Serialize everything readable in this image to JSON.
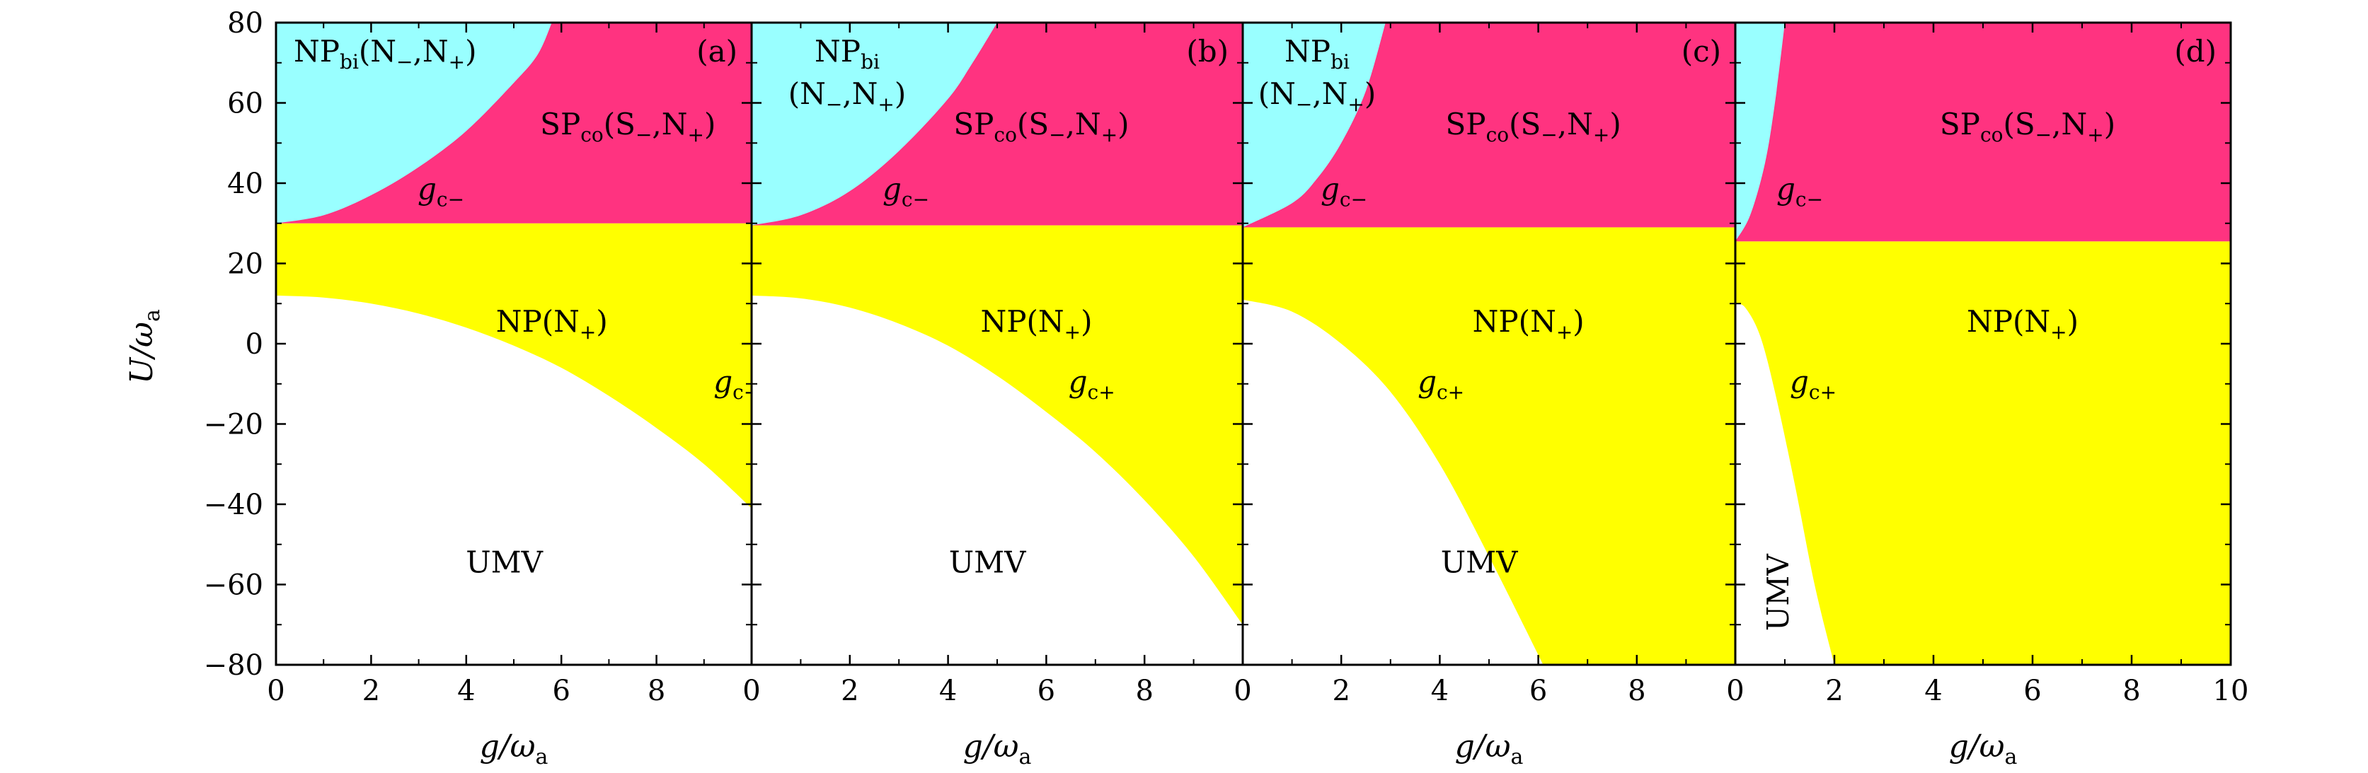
{
  "chart_data": {
    "type": "area",
    "description_axes": {
      "xlabel": "g/ω",
      "xlabel_sub": "a",
      "ylabel": "U/ω",
      "ylabel_sub": "a",
      "ylim": [
        -80,
        80
      ],
      "yticks": [
        -80,
        -60,
        -40,
        -20,
        0,
        20,
        40,
        60,
        80
      ]
    },
    "colors": {
      "NPbi": "#99ffff",
      "SPco": "#ff3380",
      "NPplus": "#ffff00",
      "UMV": "#ffffff",
      "frame": "#000000"
    },
    "region_text": {
      "UMV": "UMV",
      "NPplus_main": "NP(N",
      "NPplus_sub": "+",
      "NPplus_close": ")",
      "SPco_main": "SP",
      "SPco_sub": "co",
      "SPco_args": "(S",
      "SPco_sub2": "−",
      "SPco_args2": ",N",
      "SPco_sub3": "+",
      "SPco_close": ")",
      "NPbi_main": "NP",
      "NPbi_sub": "bi",
      "NPbi_args": "(N",
      "NPbi_sub2": "−",
      "NPbi_args2": ",N",
      "NPbi_sub3": "+",
      "NPbi_close": ")",
      "gc_minus": "g",
      "gc_minus_sub": "c−",
      "gc_plus": "g",
      "gc_plus_sub": "c+"
    },
    "panels": [
      {
        "label": "(a)",
        "xlim": [
          0,
          10
        ],
        "xticks": [
          0,
          2,
          4,
          6,
          8
        ],
        "xtick_labels": [
          "0",
          "2",
          "4",
          "6",
          "8"
        ],
        "gc_plus_boundary": {
          "x": [
            0,
            1,
            2,
            3,
            4,
            5,
            6,
            7,
            8,
            9,
            10
          ],
          "U": [
            12,
            11.5,
            10,
            7.5,
            4,
            -0.5,
            -6,
            -13,
            -21,
            -30,
            -41
          ]
        },
        "gc_minus_boundary": {
          "x": [
            0,
            1,
            2,
            3,
            4,
            5,
            5.5,
            5.8
          ],
          "U": [
            30,
            32,
            37,
            44,
            53,
            65,
            72,
            80
          ]
        },
        "horizontal_boundary_U": 30,
        "label_pos": {
          "NPbi": "top-left",
          "SPco": "upper-right",
          "NPplus": "middle-right",
          "UMV": "bottom-center"
        }
      },
      {
        "label": "(b)",
        "xlim": [
          0,
          10
        ],
        "xticks": [
          0,
          2,
          4,
          6,
          8
        ],
        "xtick_labels": [
          "0",
          "2",
          "4",
          "6",
          "8"
        ],
        "gc_plus_boundary": {
          "x": [
            0,
            1,
            2,
            3,
            4,
            5,
            6,
            7,
            8,
            9,
            10
          ],
          "U": [
            12,
            11.3,
            9,
            5,
            -0.5,
            -8,
            -17,
            -27,
            -39,
            -53,
            -70
          ]
        },
        "gc_minus_boundary": {
          "x": [
            0,
            1,
            2,
            3,
            4,
            4.5,
            5.0
          ],
          "U": [
            29.5,
            32,
            38,
            48,
            61,
            70,
            80
          ]
        },
        "horizontal_boundary_U": 29.5,
        "label_pos": {
          "NPbi": "top-left-two-line",
          "SPco": "upper-right",
          "NPplus": "middle-right",
          "UMV": "bottom-center"
        }
      },
      {
        "label": "(c)",
        "xlim": [
          0,
          10
        ],
        "xticks": [
          0,
          2,
          4,
          6,
          8
        ],
        "xtick_labels": [
          "0",
          "2",
          "4",
          "6",
          "8"
        ],
        "gc_plus_boundary": {
          "x": [
            0,
            1,
            2,
            3,
            4,
            5,
            6.1
          ],
          "U": [
            11,
            8,
            0,
            -12,
            -30,
            -53,
            -80
          ]
        },
        "gc_minus_boundary": {
          "x": [
            0,
            1,
            1.5,
            2,
            2.5,
            2.9
          ],
          "U": [
            29,
            35,
            41,
            50,
            63,
            80
          ]
        },
        "horizontal_boundary_U": 29,
        "label_pos": {
          "NPbi": "top-left-two-line",
          "SPco": "upper-right",
          "NPplus": "middle-right",
          "UMV": "bottom-center"
        }
      },
      {
        "label": "(d)",
        "xlim": [
          0,
          10
        ],
        "xticks": [
          0,
          2,
          4,
          6,
          8,
          10
        ],
        "xtick_labels": [
          "0",
          "2",
          "4",
          "6",
          "8",
          "10"
        ],
        "gc_plus_boundary": {
          "x": [
            0,
            0.2,
            0.5,
            0.8,
            1.2,
            1.6,
            2.0
          ],
          "U": [
            10,
            9,
            2,
            -12,
            -35,
            -60,
            -80
          ]
        },
        "gc_minus_boundary": {
          "x": [
            0,
            0.3,
            0.6,
            0.8,
            1.0
          ],
          "U": [
            25.5,
            32,
            45,
            60,
            80
          ]
        },
        "horizontal_boundary_U": 25.5,
        "label_pos": {
          "NPbi": "none",
          "SPco": "upper-right",
          "NPplus": "middle-right",
          "UMV": "bottom-left-rotated"
        }
      }
    ]
  }
}
